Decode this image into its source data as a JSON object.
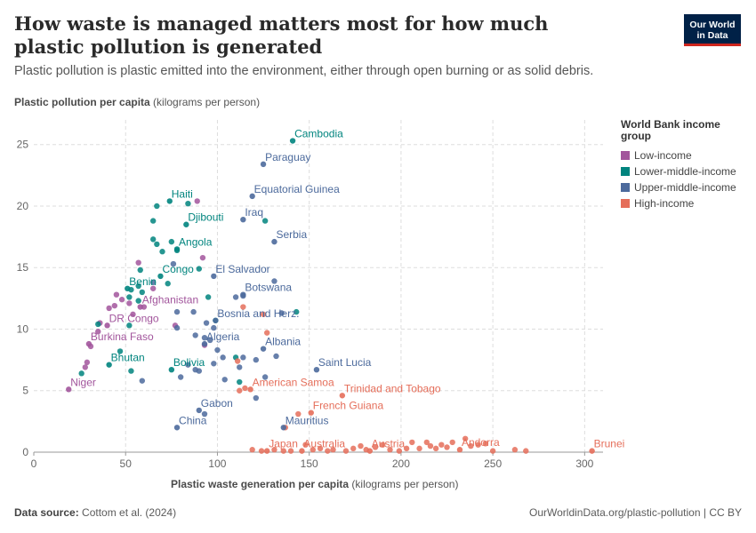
{
  "title": "How waste is managed matters most for how much plastic pollution is generated",
  "subtitle": "Plastic pollution is plastic emitted into the environment, either through open burning or as solid debris.",
  "logo": {
    "line1": "Our World",
    "line2": "in Data"
  },
  "footer": {
    "source_label": "Data source:",
    "source": "Cottom et al. (2024)",
    "url": "OurWorldinData.org/plastic-pollution | CC BY"
  },
  "chart_data": {
    "type": "scatter",
    "ylabel_bold": "Plastic pollution per capita",
    "ylabel_unit": "(kilograms per person)",
    "xlabel_bold": "Plastic waste generation per capita",
    "xlabel_unit": "(kilograms per person)",
    "xlim": [
      0,
      310
    ],
    "ylim": [
      0,
      27
    ],
    "x_ticks": [
      0,
      50,
      100,
      150,
      200,
      250,
      300
    ],
    "y_ticks": [
      0,
      5,
      10,
      15,
      20,
      25
    ],
    "grid": true,
    "legend_position": "right",
    "legend_title": "World Bank income group",
    "groups": [
      {
        "key": "low",
        "name": "Low-income",
        "color": "#a2559c"
      },
      {
        "key": "lm",
        "name": "Lower-middle-income",
        "color": "#00847e"
      },
      {
        "key": "um",
        "name": "Upper-middle-income",
        "color": "#4c6a9c"
      },
      {
        "key": "high",
        "name": "High-income",
        "color": "#e56e5a"
      }
    ],
    "labeled_points": [
      {
        "label": "Cambodia",
        "group": "lm",
        "x": 141,
        "y": 25.3
      },
      {
        "label": "Paraguay",
        "group": "um",
        "x": 125,
        "y": 23.4
      },
      {
        "label": "Equatorial Guinea",
        "group": "um",
        "x": 119,
        "y": 20.8
      },
      {
        "label": "Haiti",
        "group": "lm",
        "x": 74,
        "y": 20.4
      },
      {
        "label": "Iraq",
        "group": "um",
        "x": 114,
        "y": 18.9
      },
      {
        "label": "Djibouti",
        "group": "lm",
        "x": 83,
        "y": 18.5
      },
      {
        "label": "Serbia",
        "group": "um",
        "x": 131,
        "y": 17.1
      },
      {
        "label": "Angola",
        "group": "lm",
        "x": 78,
        "y": 16.5
      },
      {
        "label": "Congo",
        "group": "lm",
        "x": 69,
        "y": 14.3
      },
      {
        "label": "El Salvador",
        "group": "um",
        "x": 98,
        "y": 14.3
      },
      {
        "label": "Benin",
        "group": "lm",
        "x": 51,
        "y": 13.3
      },
      {
        "label": "Botswana",
        "group": "um",
        "x": 114,
        "y": 12.8
      },
      {
        "label": "Afghanistan",
        "group": "low",
        "x": 58,
        "y": 11.8
      },
      {
        "label": "DR Congo",
        "group": "low",
        "x": 40,
        "y": 10.3
      },
      {
        "label": "Bosnia and Herz.",
        "group": "um",
        "x": 99,
        "y": 10.7
      },
      {
        "label": "Algeria",
        "group": "um",
        "x": 93,
        "y": 8.8
      },
      {
        "label": "Burkina Faso",
        "group": "low",
        "x": 30,
        "y": 8.8
      },
      {
        "label": "Albania",
        "group": "um",
        "x": 125,
        "y": 8.4
      },
      {
        "label": "Bhutan",
        "group": "lm",
        "x": 41,
        "y": 7.1
      },
      {
        "label": "Saint Lucia",
        "group": "um",
        "x": 154,
        "y": 6.7
      },
      {
        "label": "Bolivia",
        "group": "lm",
        "x": 75,
        "y": 6.7
      },
      {
        "label": "American Samoa",
        "group": "high",
        "x": 118,
        "y": 5.1
      },
      {
        "label": "Niger",
        "group": "low",
        "x": 19,
        "y": 5.1
      },
      {
        "label": "Trinidad and Tobago",
        "group": "high",
        "x": 168,
        "y": 4.6
      },
      {
        "label": "Gabon",
        "group": "um",
        "x": 90,
        "y": 3.4
      },
      {
        "label": "French Guiana",
        "group": "high",
        "x": 151,
        "y": 3.2
      },
      {
        "label": "China",
        "group": "um",
        "x": 78,
        "y": 2.0
      },
      {
        "label": "Mauritius",
        "group": "um",
        "x": 136,
        "y": 2.0
      },
      {
        "label": "Japan",
        "group": "high",
        "x": 127,
        "y": 0.1
      },
      {
        "label": "Australia",
        "group": "high",
        "x": 146,
        "y": 0.1
      },
      {
        "label": "Austria",
        "group": "high",
        "x": 183,
        "y": 0.1
      },
      {
        "label": "Andorra",
        "group": "high",
        "x": 232,
        "y": 0.2
      },
      {
        "label": "Brunei",
        "group": "high",
        "x": 304,
        "y": 0.1
      }
    ],
    "points": [
      {
        "group": "low",
        "x": 89,
        "y": 20.4
      },
      {
        "group": "low",
        "x": 57,
        "y": 15.4
      },
      {
        "group": "low",
        "x": 92,
        "y": 15.8
      },
      {
        "group": "low",
        "x": 45,
        "y": 12.8
      },
      {
        "group": "low",
        "x": 48,
        "y": 12.4
      },
      {
        "group": "low",
        "x": 52,
        "y": 12.1
      },
      {
        "group": "low",
        "x": 44,
        "y": 11.9
      },
      {
        "group": "low",
        "x": 41,
        "y": 11.7
      },
      {
        "group": "low",
        "x": 65,
        "y": 13.3
      },
      {
        "group": "low",
        "x": 36,
        "y": 10.5
      },
      {
        "group": "low",
        "x": 35,
        "y": 9.8
      },
      {
        "group": "low",
        "x": 77,
        "y": 10.3
      },
      {
        "group": "low",
        "x": 93,
        "y": 8.7
      },
      {
        "group": "low",
        "x": 29,
        "y": 7.3
      },
      {
        "group": "low",
        "x": 28,
        "y": 6.9
      },
      {
        "group": "low",
        "x": 31,
        "y": 8.6
      },
      {
        "group": "low",
        "x": 54,
        "y": 11.2
      },
      {
        "group": "low",
        "x": 60,
        "y": 11.8
      },
      {
        "group": "lm",
        "x": 67,
        "y": 20.0
      },
      {
        "group": "lm",
        "x": 84,
        "y": 20.2
      },
      {
        "group": "lm",
        "x": 65,
        "y": 18.8
      },
      {
        "group": "lm",
        "x": 126,
        "y": 18.8
      },
      {
        "group": "lm",
        "x": 65,
        "y": 17.3
      },
      {
        "group": "lm",
        "x": 67,
        "y": 16.9
      },
      {
        "group": "lm",
        "x": 75,
        "y": 17.1
      },
      {
        "group": "lm",
        "x": 78,
        "y": 16.4
      },
      {
        "group": "lm",
        "x": 70,
        "y": 16.3
      },
      {
        "group": "lm",
        "x": 58,
        "y": 14.8
      },
      {
        "group": "lm",
        "x": 90,
        "y": 14.9
      },
      {
        "group": "lm",
        "x": 73,
        "y": 13.7
      },
      {
        "group": "lm",
        "x": 53,
        "y": 13.2
      },
      {
        "group": "lm",
        "x": 57,
        "y": 13.5
      },
      {
        "group": "lm",
        "x": 59,
        "y": 13.0
      },
      {
        "group": "lm",
        "x": 52,
        "y": 12.6
      },
      {
        "group": "lm",
        "x": 57,
        "y": 12.3
      },
      {
        "group": "lm",
        "x": 95,
        "y": 12.6
      },
      {
        "group": "lm",
        "x": 143,
        "y": 11.4
      },
      {
        "group": "lm",
        "x": 35,
        "y": 10.4
      },
      {
        "group": "lm",
        "x": 99,
        "y": 10.7
      },
      {
        "group": "lm",
        "x": 52,
        "y": 10.3
      },
      {
        "group": "lm",
        "x": 47,
        "y": 8.2
      },
      {
        "group": "lm",
        "x": 26,
        "y": 6.4
      },
      {
        "group": "lm",
        "x": 53,
        "y": 6.6
      },
      {
        "group": "lm",
        "x": 110,
        "y": 7.7
      },
      {
        "group": "lm",
        "x": 112,
        "y": 5.7
      },
      {
        "group": "um",
        "x": 76,
        "y": 15.3
      },
      {
        "group": "um",
        "x": 131,
        "y": 13.9
      },
      {
        "group": "um",
        "x": 110,
        "y": 12.6
      },
      {
        "group": "um",
        "x": 114,
        "y": 12.7
      },
      {
        "group": "um",
        "x": 78,
        "y": 11.4
      },
      {
        "group": "um",
        "x": 87,
        "y": 11.4
      },
      {
        "group": "um",
        "x": 135,
        "y": 11.3
      },
      {
        "group": "um",
        "x": 94,
        "y": 10.5
      },
      {
        "group": "um",
        "x": 98,
        "y": 10.1
      },
      {
        "group": "um",
        "x": 78,
        "y": 10.1
      },
      {
        "group": "um",
        "x": 88,
        "y": 9.5
      },
      {
        "group": "um",
        "x": 96,
        "y": 9.1
      },
      {
        "group": "um",
        "x": 93,
        "y": 9.3
      },
      {
        "group": "um",
        "x": 100,
        "y": 8.3
      },
      {
        "group": "um",
        "x": 103,
        "y": 7.7
      },
      {
        "group": "um",
        "x": 98,
        "y": 7.2
      },
      {
        "group": "um",
        "x": 114,
        "y": 7.7
      },
      {
        "group": "um",
        "x": 121,
        "y": 7.5
      },
      {
        "group": "um",
        "x": 132,
        "y": 7.8
      },
      {
        "group": "um",
        "x": 112,
        "y": 6.9
      },
      {
        "group": "um",
        "x": 84,
        "y": 7.1
      },
      {
        "group": "um",
        "x": 88,
        "y": 6.7
      },
      {
        "group": "um",
        "x": 90,
        "y": 6.6
      },
      {
        "group": "um",
        "x": 80,
        "y": 6.1
      },
      {
        "group": "um",
        "x": 104,
        "y": 5.9
      },
      {
        "group": "um",
        "x": 59,
        "y": 5.8
      },
      {
        "group": "um",
        "x": 126,
        "y": 6.1
      },
      {
        "group": "um",
        "x": 121,
        "y": 4.4
      },
      {
        "group": "um",
        "x": 93,
        "y": 3.1
      },
      {
        "group": "um",
        "x": 65,
        "y": 13.8
      },
      {
        "group": "high",
        "x": 114,
        "y": 11.8
      },
      {
        "group": "high",
        "x": 125,
        "y": 11.2
      },
      {
        "group": "high",
        "x": 127,
        "y": 9.7
      },
      {
        "group": "high",
        "x": 111,
        "y": 7.4
      },
      {
        "group": "high",
        "x": 112,
        "y": 5.0
      },
      {
        "group": "high",
        "x": 115,
        "y": 5.2
      },
      {
        "group": "high",
        "x": 137,
        "y": 2.0
      },
      {
        "group": "high",
        "x": 144,
        "y": 3.1
      },
      {
        "group": "high",
        "x": 119,
        "y": 0.2
      },
      {
        "group": "high",
        "x": 124,
        "y": 0.1
      },
      {
        "group": "high",
        "x": 131,
        "y": 0.2
      },
      {
        "group": "high",
        "x": 136,
        "y": 0.1
      },
      {
        "group": "high",
        "x": 140,
        "y": 0.1
      },
      {
        "group": "high",
        "x": 148,
        "y": 0.6
      },
      {
        "group": "high",
        "x": 152,
        "y": 0.2
      },
      {
        "group": "high",
        "x": 156,
        "y": 0.3
      },
      {
        "group": "high",
        "x": 160,
        "y": 0.1
      },
      {
        "group": "high",
        "x": 163,
        "y": 0.2
      },
      {
        "group": "high",
        "x": 170,
        "y": 0.1
      },
      {
        "group": "high",
        "x": 174,
        "y": 0.3
      },
      {
        "group": "high",
        "x": 178,
        "y": 0.5
      },
      {
        "group": "high",
        "x": 181,
        "y": 0.2
      },
      {
        "group": "high",
        "x": 186,
        "y": 0.4
      },
      {
        "group": "high",
        "x": 190,
        "y": 0.6
      },
      {
        "group": "high",
        "x": 194,
        "y": 0.2
      },
      {
        "group": "high",
        "x": 199,
        "y": 0.1
      },
      {
        "group": "high",
        "x": 203,
        "y": 0.3
      },
      {
        "group": "high",
        "x": 206,
        "y": 0.8
      },
      {
        "group": "high",
        "x": 210,
        "y": 0.3
      },
      {
        "group": "high",
        "x": 214,
        "y": 0.8
      },
      {
        "group": "high",
        "x": 216,
        "y": 0.5
      },
      {
        "group": "high",
        "x": 219,
        "y": 0.3
      },
      {
        "group": "high",
        "x": 222,
        "y": 0.6
      },
      {
        "group": "high",
        "x": 225,
        "y": 0.4
      },
      {
        "group": "high",
        "x": 228,
        "y": 0.8
      },
      {
        "group": "high",
        "x": 235,
        "y": 1.1
      },
      {
        "group": "high",
        "x": 238,
        "y": 0.5
      },
      {
        "group": "high",
        "x": 242,
        "y": 0.6
      },
      {
        "group": "high",
        "x": 246,
        "y": 0.7
      },
      {
        "group": "high",
        "x": 250,
        "y": 0.1
      },
      {
        "group": "high",
        "x": 262,
        "y": 0.2
      },
      {
        "group": "high",
        "x": 268,
        "y": 0.1
      }
    ]
  }
}
